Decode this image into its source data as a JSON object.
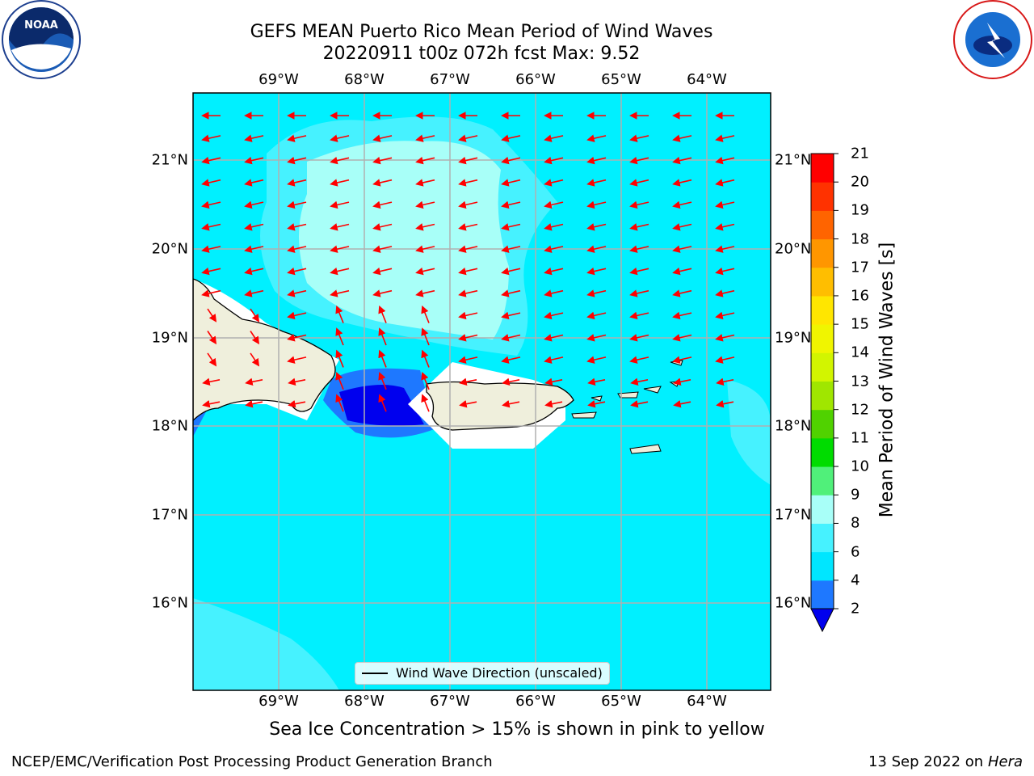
{
  "title_line1": "GEFS MEAN Puerto Rico Mean Period of Wind Waves",
  "title_line2": "20220911 t00z 072h fcst   Max: 9.52",
  "lon_labels": [
    "69°W",
    "68°W",
    "67°W",
    "66°W",
    "65°W",
    "64°W"
  ],
  "lat_labels": [
    "21°N",
    "20°N",
    "19°N",
    "18°N",
    "17°N",
    "16°N"
  ],
  "colorbar": {
    "label": "Mean Period of Wind Waves [s]",
    "ticks": [
      "2",
      "4",
      "6",
      "8",
      "9",
      "10",
      "11",
      "12",
      "13",
      "14",
      "15",
      "16",
      "17",
      "18",
      "19",
      "20",
      "21"
    ],
    "colors": [
      "#0000ee",
      "#1e78ff",
      "#00e6ff",
      "#46f2ff",
      "#a8fff8",
      "#50f07a",
      "#00dc00",
      "#50d200",
      "#a0e600",
      "#d2f500",
      "#f0f500",
      "#ffe600",
      "#ffbe00",
      "#ff9600",
      "#ff6400",
      "#ff3200",
      "#ff0000"
    ]
  },
  "legend_text": "Wind Wave Direction (unscaled)",
  "sea_ice_note": "Sea Ice Concentration > 15% is shown in pink to yellow",
  "footer_left": "NCEP/EMC/Verification Post Processing Product Generation Branch",
  "footer_date": "13 Sep 2022 on",
  "footer_machine": "Hera",
  "logos": {
    "left": "NOAA",
    "right": "NATIONAL WEATHER SERVICE"
  }
}
